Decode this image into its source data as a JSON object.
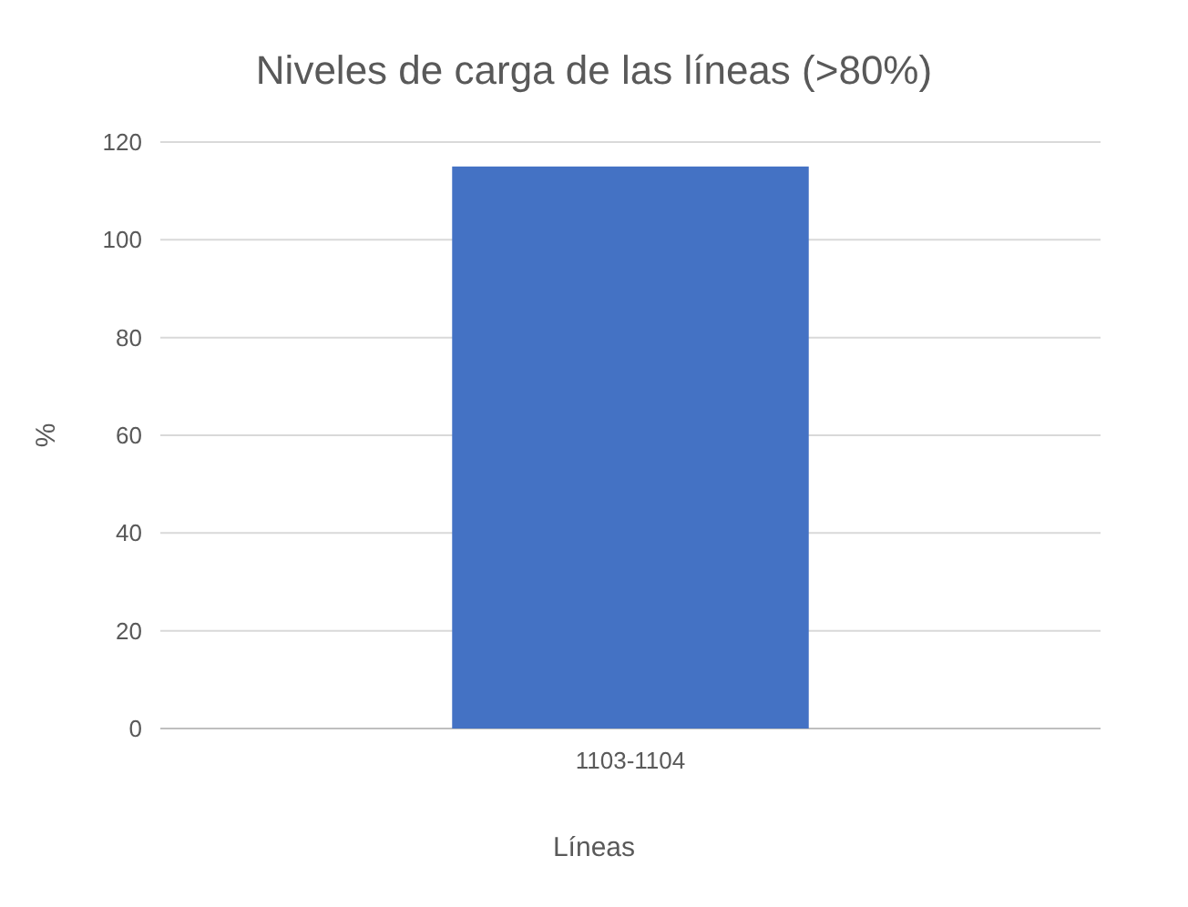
{
  "chart_data": {
    "type": "bar",
    "title": "Niveles de carga de las líneas (>80%)",
    "xlabel": "Líneas",
    "ylabel": "%",
    "categories": [
      "1103-1104"
    ],
    "values": [
      115
    ],
    "color": "#4472c4",
    "ylim": [
      0,
      120
    ],
    "yticks": [
      0,
      20,
      40,
      60,
      80,
      100,
      120
    ],
    "grid": "y"
  }
}
